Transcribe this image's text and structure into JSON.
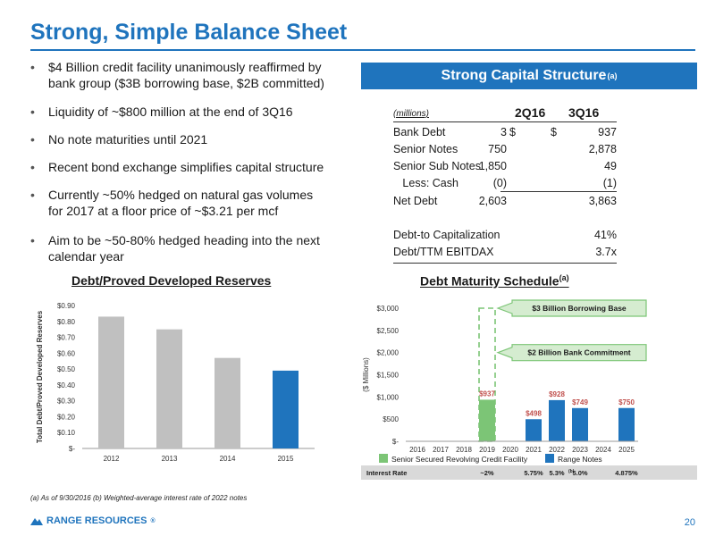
{
  "page": {
    "title": "Strong, Simple Balance Sheet",
    "footnote": "(a)  As of 9/30/2016  (b) Weighted-average interest rate of 2022 notes",
    "page_number": "20",
    "logo_text": "RANGE RESOURCES",
    "logo_mark": "®"
  },
  "bullets": [
    {
      "lines": [
        "$4 Billion credit facility unanimously reaffirmed by",
        "bank group ($3B borrowing base, $2B committed)"
      ]
    },
    {
      "lines": [
        "Liquidity of ~$800 million at the end of 3Q16"
      ]
    },
    {
      "lines": [
        "No note maturities until 2021"
      ]
    },
    {
      "lines": [
        "Recent bond exchange simplifies capital structure"
      ]
    },
    {
      "lines": [
        "Currently ~50% hedged on natural gas volumes",
        "for 2017 at a floor price of ~$3.21 per mcf"
      ]
    },
    {
      "lines": [
        "Aim to be ~50-80% hedged heading into the next",
        "calendar year"
      ]
    }
  ],
  "capital_structure": {
    "header": "Strong Capital Structure",
    "header_note": "(a)",
    "units": "(millions)",
    "col1": "2Q16",
    "col2": "3Q16",
    "rows": [
      {
        "label": "Bank Debt",
        "cur1": "$",
        "v1": "3",
        "cur2": "$",
        "v2": "937"
      },
      {
        "label": "Senior Notes",
        "cur1": "",
        "v1": "750",
        "cur2": "",
        "v2": "2,878"
      },
      {
        "label": "Senior Sub Notes",
        "cur1": "",
        "v1": "1,850",
        "cur2": "",
        "v2": "49"
      },
      {
        "label": "   Less: Cash",
        "cur1": "",
        "v1": "(0)",
        "cur2": "",
        "v2": "(1)"
      },
      {
        "label": "Net Debt",
        "cur1": "",
        "v1": "2,603",
        "cur2": "",
        "v2": "3,863"
      }
    ],
    "ratios": [
      {
        "label": "Debt-to Capitalization",
        "value": "41%"
      },
      {
        "label": "Debt/TTM EBITDAX",
        "value": "3.7x"
      }
    ]
  },
  "chart_data": [
    {
      "type": "bar",
      "title": "Debt/Proved Developed Reserves",
      "ylabel": "Total Debt/Proved Developed Reserves",
      "categories": [
        "2012",
        "2013",
        "2014",
        "2015"
      ],
      "values": [
        0.83,
        0.75,
        0.57,
        0.49
      ],
      "bar_colors": [
        "#c0c0c0",
        "#c0c0c0",
        "#c0c0c0",
        "#1f74bd"
      ],
      "ylim": [
        0,
        0.9
      ],
      "yticks": [
        "$-",
        "$0.10",
        "$0.20",
        "$0.30",
        "$0.40",
        "$0.50",
        "$0.60",
        "$0.70",
        "$0.80",
        "$0.90"
      ],
      "grid": false
    },
    {
      "type": "bar",
      "title": "Debt Maturity Schedule",
      "title_note": "(a)",
      "ylabel": "($ Millions)",
      "categories": [
        "2016",
        "2017",
        "2018",
        "2019",
        "2020",
        "2021",
        "2022",
        "2023",
        "2024",
        "2025"
      ],
      "ylim": [
        0,
        3000
      ],
      "yticks": [
        "$-",
        "$500",
        "$1,000",
        "$1,500",
        "$2,000",
        "$2,500",
        "$3,000"
      ],
      "series": [
        {
          "name": "Senior Secured Revolving Credit Facility",
          "color": "#7cc576",
          "values": [
            0,
            0,
            0,
            937,
            0,
            0,
            0,
            0,
            0,
            0
          ],
          "labels": [
            "",
            "",
            "",
            "$937",
            "",
            "",
            "",
            "",
            "",
            ""
          ]
        },
        {
          "name": "Range Notes",
          "color": "#1f74bd",
          "values": [
            0,
            0,
            0,
            0,
            0,
            498,
            928,
            749,
            0,
            750
          ],
          "labels": [
            "",
            "",
            "",
            "",
            "",
            "$498",
            "$928",
            "$749",
            "",
            "$750"
          ]
        }
      ],
      "outline": {
        "category": "2019",
        "value": 3000,
        "color": "#7cc576"
      },
      "callouts": [
        {
          "text": "$3 Billion Borrowing Base",
          "value": 3000
        },
        {
          "text": "$2 Billion Bank Commitment",
          "value": 2000
        }
      ],
      "interest_rate": {
        "label": "Interest Rate",
        "values": [
          "",
          "",
          "",
          "~2%",
          "",
          "5.75%",
          "5.3%",
          "5.0%",
          "",
          "4.875%"
        ],
        "notes": [
          "",
          "",
          "",
          "",
          "",
          "",
          "(b)",
          "",
          "",
          ""
        ]
      },
      "legend_position": "bottom"
    }
  ]
}
